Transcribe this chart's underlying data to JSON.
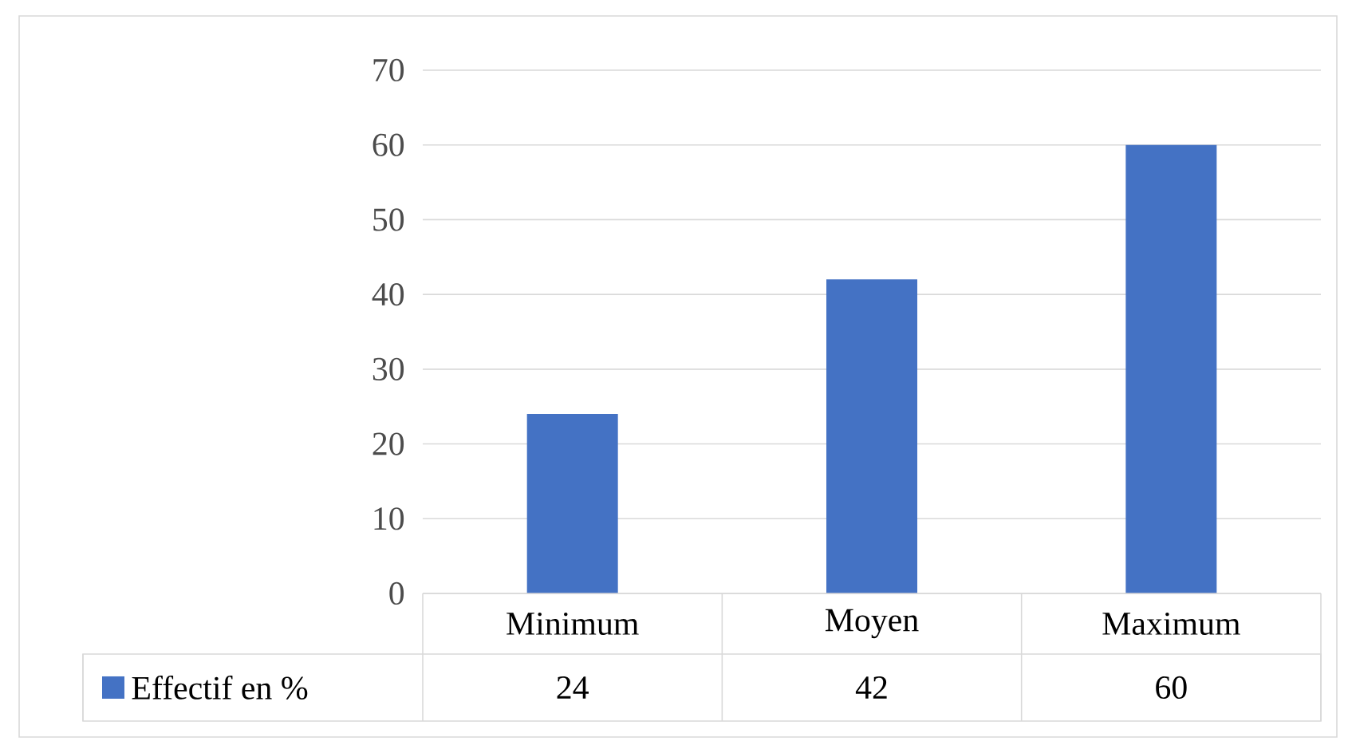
{
  "chart_data": {
    "type": "bar",
    "categories": [
      "Minimum",
      "Moyen",
      "Maximum"
    ],
    "series": [
      {
        "name": "Effectif en %",
        "color": "#4472c4",
        "values": [
          24,
          42,
          60
        ]
      }
    ],
    "ylim": [
      0,
      70
    ],
    "yticks": [
      0,
      10,
      20,
      30,
      40,
      50,
      60,
      70
    ],
    "grid": "y",
    "legend": "bottom left",
    "data_labels": true
  }
}
